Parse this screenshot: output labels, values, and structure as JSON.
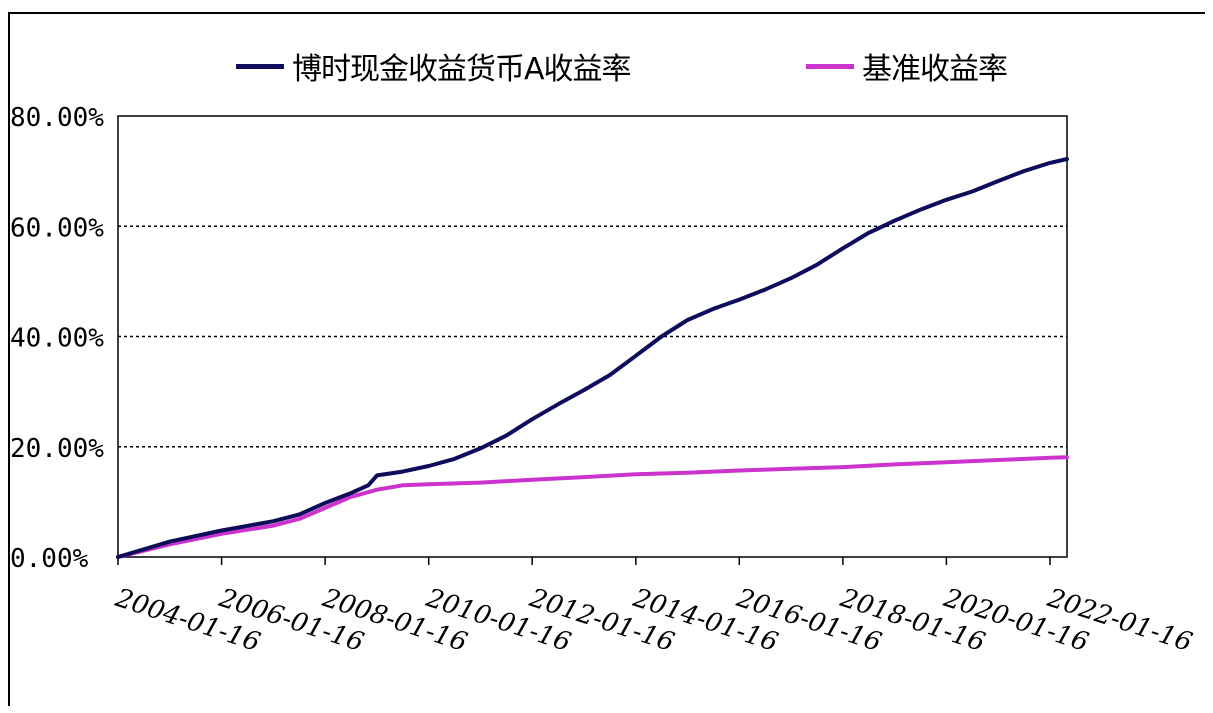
{
  "chart_data": {
    "type": "line",
    "legend_placement": "top",
    "grid": "horizontal dashed",
    "ylim": [
      0,
      80
    ],
    "y_ticks": [
      "80.00%",
      "60.00%",
      "40.00%",
      "20.00%",
      "0.00%"
    ],
    "x_ticks": [
      "2004-01-16",
      "2006-01-16",
      "2008-01-16",
      "2010-01-16",
      "2012-01-16",
      "2014-01-16",
      "2016-01-16",
      "2018-01-16",
      "2020-01-16",
      "2022-01-16"
    ],
    "series": [
      {
        "name": "博时现金收益货币A收益率",
        "color": "#0d0d5c",
        "points": [
          [
            "2004-01-16",
            0.0
          ],
          [
            "2005-01-16",
            2.8
          ],
          [
            "2006-01-16",
            4.8
          ],
          [
            "2007-01-16",
            6.5
          ],
          [
            "2007-07-16",
            7.7
          ],
          [
            "2008-01-16",
            9.8
          ],
          [
            "2008-07-16",
            11.6
          ],
          [
            "2008-11-16",
            13.0
          ],
          [
            "2009-01-16",
            14.8
          ],
          [
            "2009-07-16",
            15.5
          ],
          [
            "2010-01-16",
            16.5
          ],
          [
            "2010-07-16",
            17.8
          ],
          [
            "2011-01-16",
            19.7
          ],
          [
            "2011-07-16",
            22.0
          ],
          [
            "2012-01-16",
            25.0
          ],
          [
            "2012-07-16",
            27.7
          ],
          [
            "2013-01-16",
            30.3
          ],
          [
            "2013-07-16",
            33.0
          ],
          [
            "2014-01-16",
            36.5
          ],
          [
            "2014-07-16",
            40.0
          ],
          [
            "2015-01-16",
            43.0
          ],
          [
            "2015-07-16",
            45.0
          ],
          [
            "2016-01-16",
            46.7
          ],
          [
            "2016-07-16",
            48.5
          ],
          [
            "2017-01-16",
            50.6
          ],
          [
            "2017-07-16",
            53.0
          ],
          [
            "2018-01-16",
            56.0
          ],
          [
            "2018-07-16",
            58.8
          ],
          [
            "2019-01-16",
            61.0
          ],
          [
            "2019-07-16",
            63.0
          ],
          [
            "2020-01-16",
            64.8
          ],
          [
            "2020-07-16",
            66.3
          ],
          [
            "2021-01-16",
            68.2
          ],
          [
            "2021-07-16",
            70.0
          ],
          [
            "2022-01-16",
            71.5
          ],
          [
            "2022-05-16",
            72.2
          ]
        ]
      },
      {
        "name": "基准收益率",
        "color": "#cc33cc",
        "points": [
          [
            "2004-01-16",
            0.0
          ],
          [
            "2005-01-16",
            2.3
          ],
          [
            "2006-01-16",
            4.2
          ],
          [
            "2007-01-16",
            5.7
          ],
          [
            "2007-07-16",
            6.9
          ],
          [
            "2008-01-16",
            8.9
          ],
          [
            "2008-07-16",
            10.9
          ],
          [
            "2009-01-16",
            12.2
          ],
          [
            "2009-07-16",
            13.0
          ],
          [
            "2010-01-16",
            13.2
          ],
          [
            "2011-01-16",
            13.5
          ],
          [
            "2012-01-16",
            14.0
          ],
          [
            "2013-01-16",
            14.5
          ],
          [
            "2014-01-16",
            15.0
          ],
          [
            "2015-01-16",
            15.3
          ],
          [
            "2016-01-16",
            15.7
          ],
          [
            "2017-01-16",
            16.0
          ],
          [
            "2018-01-16",
            16.3
          ],
          [
            "2019-01-16",
            16.8
          ],
          [
            "2020-01-16",
            17.2
          ],
          [
            "2021-01-16",
            17.6
          ],
          [
            "2022-01-16",
            18.0
          ],
          [
            "2022-05-16",
            18.1
          ]
        ]
      }
    ]
  }
}
